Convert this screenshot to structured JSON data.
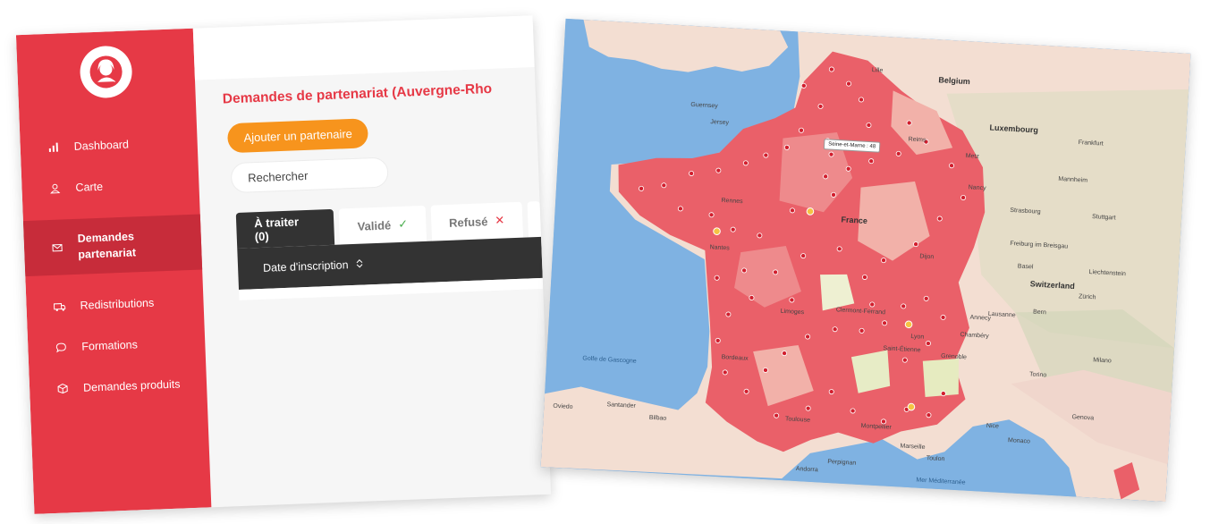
{
  "admin": {
    "sidebar": {
      "items": [
        {
          "label": "Dashboard",
          "icon": "bar-chart-icon"
        },
        {
          "label": "Carte",
          "icon": "user-icon"
        },
        {
          "label": "Demandes partenariat",
          "icon": "envelope-icon",
          "active": true
        },
        {
          "label": "Redistributions",
          "icon": "truck-icon"
        },
        {
          "label": "Formations",
          "icon": "chat-bubble-icon"
        },
        {
          "label": "Demandes produits",
          "icon": "box-icon"
        }
      ]
    },
    "page_title": "Demandes de partenariat (Auvergne-Rho",
    "add_button": "Ajouter un partenaire",
    "search_placeholder": "Rechercher",
    "tabs": [
      {
        "label": "À traiter (0)",
        "active": true
      },
      {
        "label": "Validé",
        "mark": "✓"
      },
      {
        "label": "Refusé",
        "mark": "✕"
      }
    ],
    "table": {
      "column": "Date d'inscription"
    }
  },
  "map": {
    "tooltip": "Seine-et-Marne : 48",
    "labels": {
      "countries": [
        "France",
        "Belgium",
        "Luxembourg",
        "Switzerland",
        "Liechtenstein"
      ],
      "cities": [
        "Guernsey",
        "Jersey",
        "Frankfurt",
        "Bern",
        "Zürich",
        "Milano",
        "Torino",
        "Genova",
        "Monaco",
        "Lausanne",
        "Bilbao",
        "Andorra",
        "Strasbourg",
        "Dijon",
        "Lyon",
        "Bordeaux",
        "Marseille",
        "Nantes",
        "Rennes",
        "Lille",
        "Reims",
        "Nancy",
        "Metz",
        "Toulouse",
        "Montpellier",
        "Limoges",
        "Clermont-Ferrand",
        "Grenoble",
        "Freiburg im Breisgau",
        "Basel",
        "Mannheim",
        "Stuttgart",
        "Oviedo",
        "Santander",
        "Saint-Étienne",
        "Chambéry",
        "Annecy",
        "Nice",
        "Perpignan",
        "Toulon"
      ],
      "water": [
        "Golfe de Gascogne",
        "Mer Méditerranée"
      ]
    },
    "colors": {
      "sea": "#7fb2e2",
      "land": "#f3ded2",
      "region_dark": "#ea6069",
      "region_mid": "#ee8a8c",
      "region_light": "#f2b1a9",
      "marker": "#d21f2e"
    }
  },
  "brand_color": "#e63946",
  "accent_color": "#f7941d"
}
